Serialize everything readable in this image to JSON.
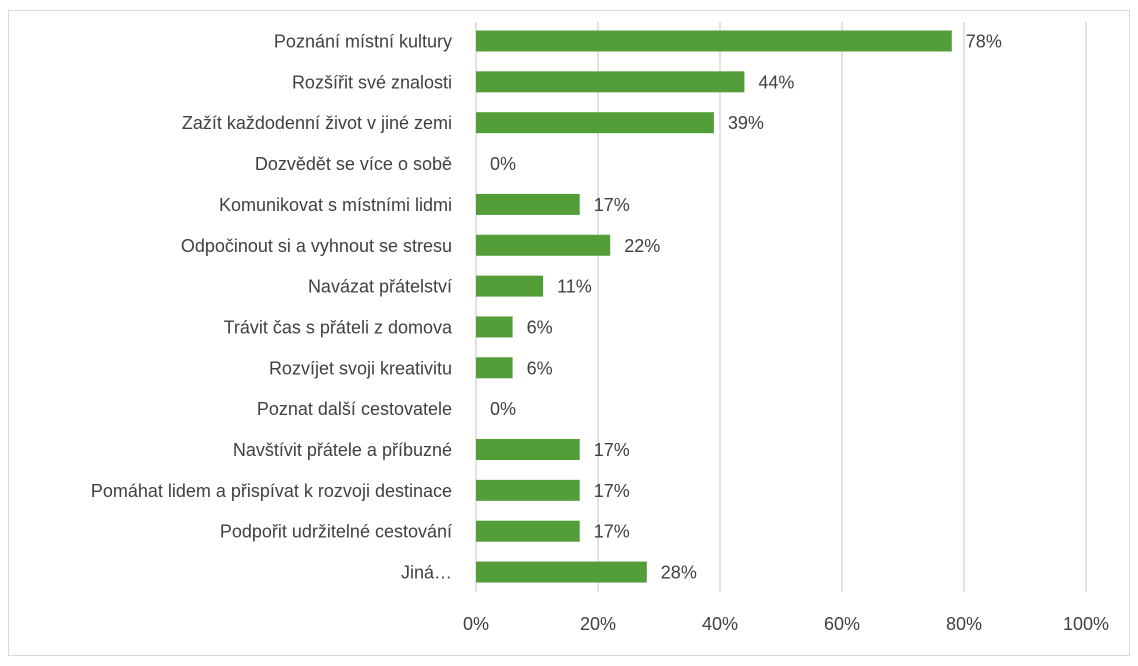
{
  "chart_data": {
    "type": "bar",
    "orientation": "horizontal",
    "categories": [
      "Poznání místní kultury",
      "Rozšířit své znalosti",
      "Zažít každodenní život v jiné zemi",
      "Dozvědět se více o sobě",
      "Komunikovat s místními lidmi",
      "Odpočinout si a vyhnout se stresu",
      "Navázat přátelství",
      "Trávit čas s přáteli z domova",
      "Rozvíjet svoji kreativitu",
      "Poznat další cestovatele",
      "Navštívit přátele a příbuzné",
      "Pomáhat lidem a přispívat k rozvoji destinace",
      "Podpořit udržitelné cestování",
      "Jiná…"
    ],
    "values": [
      78,
      44,
      39,
      0,
      17,
      22,
      11,
      6,
      6,
      0,
      17,
      17,
      17,
      28
    ],
    "value_labels": [
      "78%",
      "44%",
      "39%",
      "0%",
      "17%",
      "22%",
      "11%",
      "6%",
      "6%",
      "0%",
      "17%",
      "17%",
      "17%",
      "28%"
    ],
    "x_ticks": [
      0,
      20,
      40,
      60,
      80,
      100
    ],
    "x_tick_labels": [
      "0%",
      "20%",
      "40%",
      "60%",
      "80%",
      "100%"
    ],
    "xlim": [
      0,
      100
    ],
    "grid": true,
    "legend": false,
    "colors": {
      "bar": "#549e39",
      "grid": "#d9d9d9",
      "text": "#404040"
    }
  }
}
